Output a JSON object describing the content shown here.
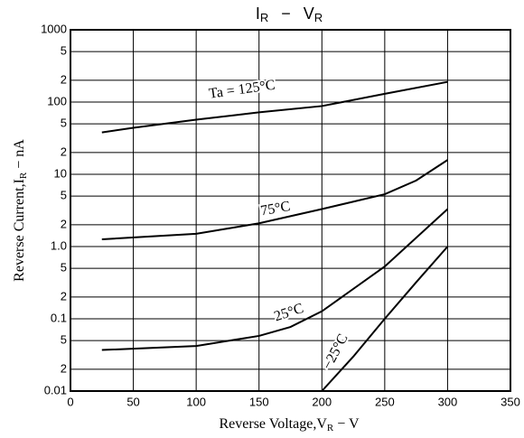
{
  "chart_data": {
    "type": "line",
    "title": [
      "I",
      "R",
      "−",
      "V",
      "R"
    ],
    "x_label": [
      "Reverse Voltage,V",
      "R",
      " − V"
    ],
    "y_label": [
      "Reverse Current,I",
      "R",
      " − nA"
    ],
    "log_y": true,
    "grid": true,
    "xlim": [
      0,
      350
    ],
    "xticks": [
      0,
      50,
      100,
      150,
      200,
      250,
      300,
      350
    ],
    "ylim": [
      0.01,
      1000
    ],
    "yticks": [
      1000,
      {
        "value": 500,
        "label": "5"
      },
      {
        "value": 200,
        "label": "2"
      },
      100,
      {
        "value": 50,
        "label": "5"
      },
      {
        "value": 20,
        "label": "2"
      },
      10,
      {
        "value": 5,
        "label": "5"
      },
      {
        "value": 2,
        "label": "2"
      },
      {
        "value": 1,
        "label": "1.0"
      },
      {
        "value": 0.5,
        "label": "5"
      },
      {
        "value": 0.2,
        "label": "2"
      },
      0.1,
      {
        "value": 0.05,
        "label": "5"
      },
      {
        "value": 0.02,
        "label": "2"
      },
      0.01
    ],
    "series": [
      {
        "name": "Ta = 125°C",
        "color": "#000000",
        "x": [
          25,
          50,
          100,
          150,
          200,
          250,
          300
        ],
        "values": [
          38,
          44,
          57,
          72,
          88,
          130,
          190
        ]
      },
      {
        "name": "75°C",
        "color": "#000000",
        "x": [
          25,
          100,
          150,
          200,
          250,
          275,
          300
        ],
        "values": [
          1.26,
          1.5,
          2.1,
          3.3,
          5.3,
          8.2,
          15.8
        ]
      },
      {
        "name": "25°C",
        "color": "#000000",
        "x": [
          25,
          100,
          150,
          175,
          200,
          250,
          300
        ],
        "values": [
          0.037,
          0.042,
          0.058,
          0.077,
          0.127,
          0.53,
          3.3
        ]
      },
      {
        "name": "−25°C",
        "color": "#000000",
        "x": [
          200,
          225,
          250,
          275,
          300
        ],
        "values": [
          0.01,
          0.03,
          0.1,
          0.32,
          1.0
        ]
      }
    ]
  }
}
